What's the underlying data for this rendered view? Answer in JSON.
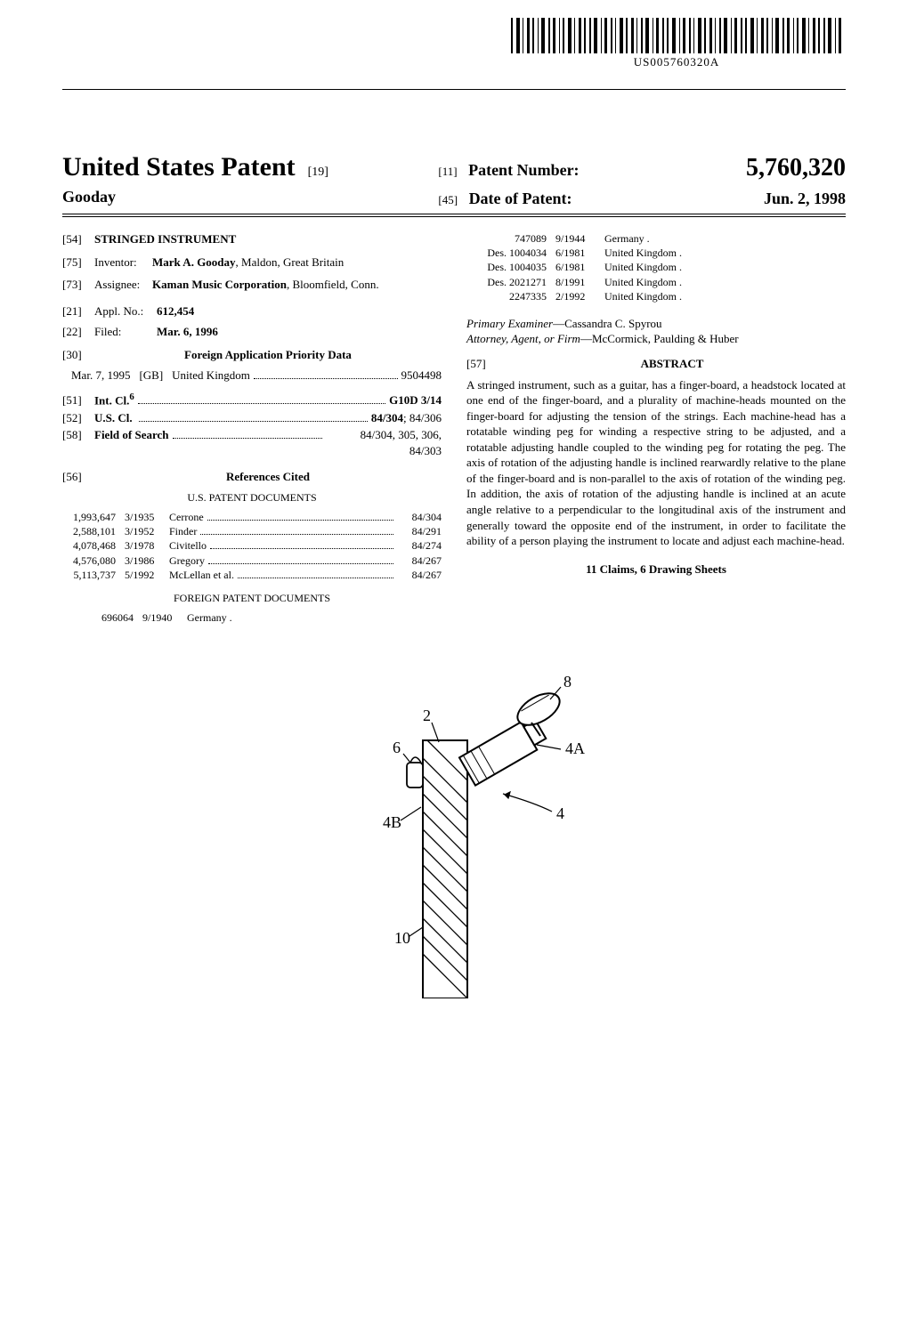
{
  "barcode_number": "US005760320A",
  "header": {
    "title": "United States Patent",
    "title_num": "[19]",
    "inventor_last": "Gooday",
    "patent_num_label": "Patent Number:",
    "patent_num_bracket": "[11]",
    "patent_number": "5,760,320",
    "date_label": "Date of Patent:",
    "date_bracket": "[45]",
    "date": "Jun. 2, 1998"
  },
  "left": {
    "title_num": "[54]",
    "title": "STRINGED INSTRUMENT",
    "inventor_num": "[75]",
    "inventor_label": "Inventor:",
    "inventor_value": "Mark A. Gooday",
    "inventor_loc": ", Maldon, Great Britain",
    "assignee_num": "[73]",
    "assignee_label": "Assignee:",
    "assignee_value": "Kaman Music Corporation",
    "assignee_loc": ", Bloomfield, Conn.",
    "appl_num": "[21]",
    "appl_label": "Appl. No.:",
    "appl_value": "612,454",
    "filed_num": "[22]",
    "filed_label": "Filed:",
    "filed_value": "Mar. 6, 1996",
    "foreign_num": "[30]",
    "foreign_label": "Foreign Application Priority Data",
    "foreign_row_date": "Mar. 7, 1995",
    "foreign_row_country": "[GB]",
    "foreign_row_name": "United Kingdom",
    "foreign_row_num": "9504498",
    "intcl_num": "[51]",
    "intcl_label": "Int. Cl.",
    "intcl_sup": "6",
    "intcl_value": "G10D 3/14",
    "uscl_num": "[52]",
    "uscl_label": "U.S. Cl.",
    "uscl_value_bold": "84/304",
    "uscl_value_rest": "; 84/306",
    "fos_num": "[58]",
    "fos_label": "Field of Search",
    "fos_value": "84/304, 305, 306, 84/303",
    "refs_num": "[56]",
    "refs_label": "References Cited",
    "us_docs_label": "U.S. PATENT DOCUMENTS",
    "us_docs": [
      {
        "num": "1,993,647",
        "date": "3/1935",
        "name": "Cerrone",
        "cls": "84/304"
      },
      {
        "num": "2,588,101",
        "date": "3/1952",
        "name": "Finder",
        "cls": "84/291"
      },
      {
        "num": "4,078,468",
        "date": "3/1978",
        "name": "Civitello",
        "cls": "84/274"
      },
      {
        "num": "4,576,080",
        "date": "3/1986",
        "name": "Gregory",
        "cls": "84/267"
      },
      {
        "num": "5,113,737",
        "date": "5/1992",
        "name": "McLellan et al.",
        "cls": "84/267"
      }
    ],
    "foreign_docs_label": "FOREIGN PATENT DOCUMENTS",
    "foreign_docs_left": [
      {
        "num": "696064",
        "date": "9/1940",
        "name": "Germany ."
      }
    ]
  },
  "right": {
    "foreign_docs": [
      {
        "num": "747089",
        "date": "9/1944",
        "name": "Germany ."
      },
      {
        "num": "Des. 1004034",
        "date": "6/1981",
        "name": "United Kingdom ."
      },
      {
        "num": "Des. 1004035",
        "date": "6/1981",
        "name": "United Kingdom ."
      },
      {
        "num": "Des. 2021271",
        "date": "8/1991",
        "name": "United Kingdom ."
      },
      {
        "num": "2247335",
        "date": "2/1992",
        "name": "United Kingdom ."
      }
    ],
    "examiner_label": "Primary Examiner",
    "examiner": "—Cassandra C. Spyrou",
    "attorney_label": "Attorney, Agent, or Firm",
    "attorney": "—McCormick, Paulding & Huber",
    "abstract_num": "[57]",
    "abstract_label": "ABSTRACT",
    "abstract_text": "A stringed instrument, such as a guitar, has a finger-board, a headstock located at one end of the finger-board, and a plurality of machine-heads mounted on the finger-board for adjusting the tension of the strings. Each machine-head has a rotatable winding peg for winding a respective string to be adjusted, and a rotatable adjusting handle coupled to the winding peg for rotating the peg. The axis of rotation of the adjusting handle is inclined rearwardly relative to the plane of the finger-board and is non-parallel to the axis of rotation of the winding peg. In addition, the axis of rotation of the adjusting handle is inclined at an acute angle relative to a perpendicular to the longitudinal axis of the instrument and generally toward the opposite end of the instrument, in order to facilitate the ability of a person playing the instrument to locate and adjust each machine-head.",
    "claims_sheets": "11 Claims, 6 Drawing Sheets"
  },
  "figure": {
    "labels": {
      "l8": "8",
      "l2": "2",
      "l4A": "4A",
      "l6": "6",
      "l4B": "4B",
      "l4": "4",
      "l10": "10"
    }
  }
}
